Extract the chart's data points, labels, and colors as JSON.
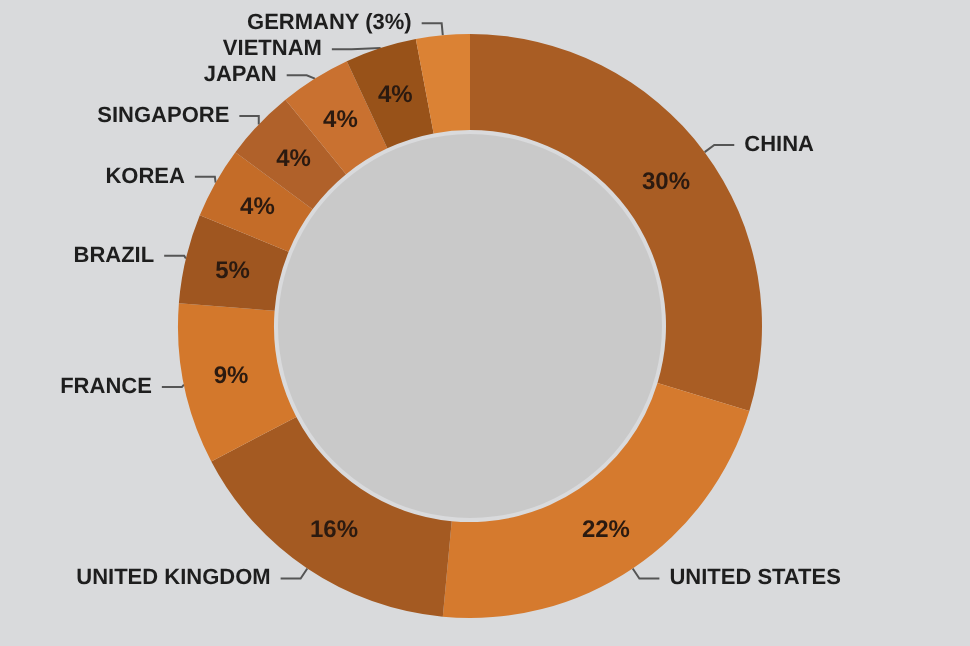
{
  "chart_data": {
    "type": "donut",
    "categories": [
      "CHINA",
      "UNITED STATES",
      "UNITED KINGDOM",
      "FRANCE",
      "BRAZIL",
      "KOREA",
      "SINGAPORE",
      "JAPAN",
      "VIETNAM",
      "GERMANY (3%)"
    ],
    "values": [
      30,
      22,
      16,
      9,
      5,
      4,
      4,
      4,
      4,
      3
    ],
    "colors": [
      "#a95d24",
      "#d57a2e",
      "#a45a22",
      "#d3782c",
      "#9f5620",
      "#c46c28",
      "#b0612a",
      "#c97130",
      "#985219",
      "#db8234"
    ],
    "value_labels": [
      "30%",
      "22%",
      "16%",
      "9%",
      "5%",
      "4%",
      "4%",
      "4%",
      "4%",
      null
    ],
    "legend": false
  }
}
